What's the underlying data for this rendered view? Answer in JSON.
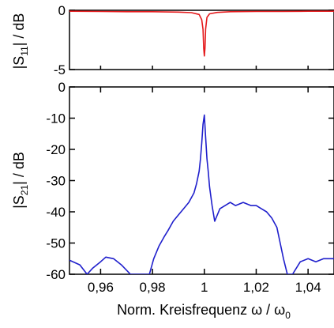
{
  "chart_data": [
    {
      "type": "line",
      "panel": "top",
      "ylabel_main": "|S",
      "ylabel_sub": "11",
      "ylabel_rest": "| / dB",
      "ylim": [
        -5,
        0
      ],
      "yticks": [
        0,
        -5
      ],
      "ytick_labels": [
        "0",
        "-5"
      ],
      "xlim": [
        0.948,
        1.05
      ],
      "series": [
        {
          "color": "#e41a1c",
          "x": [
            0.948,
            0.96,
            0.97,
            0.98,
            0.99,
            0.995,
            0.998,
            0.999,
            0.9995,
            0.99975,
            1.0,
            1.00025,
            1.0005,
            1.001,
            1.002,
            1.005,
            1.01,
            1.02,
            1.03,
            1.04,
            1.05
          ],
          "y": [
            -0.08,
            -0.1,
            -0.12,
            -0.12,
            -0.15,
            -0.2,
            -0.35,
            -0.8,
            -1.6,
            -3.2,
            -3.85,
            -3.2,
            -1.6,
            -0.6,
            -0.3,
            -0.18,
            -0.12,
            -0.1,
            -0.1,
            -0.08,
            -0.08
          ]
        }
      ]
    },
    {
      "type": "line",
      "panel": "bottom",
      "ylabel_main": "|S",
      "ylabel_sub": "21",
      "ylabel_rest": "| / dB",
      "ylim": [
        -60,
        0
      ],
      "yticks": [
        0,
        -10,
        -20,
        -30,
        -40,
        -50,
        -60
      ],
      "ytick_labels": [
        "0",
        "-10",
        "-20",
        "-30",
        "-40",
        "-50",
        "-60"
      ],
      "xlim": [
        0.948,
        1.05
      ],
      "xticks": [
        0.96,
        0.98,
        1.0,
        1.02,
        1.04
      ],
      "xtick_labels": [
        "0,96",
        "0,98",
        "1",
        "1,02",
        "1,04"
      ],
      "xlabel_main": "Norm. Kreisfrequenz ω / ω",
      "xlabel_sub": "0",
      "series": [
        {
          "color": "#1f1fcc",
          "x": [
            0.948,
            0.952,
            0.9548,
            0.957,
            0.96,
            0.962,
            0.965,
            0.968,
            0.9715,
            0.975,
            0.9788,
            0.9805,
            0.9825,
            0.9845,
            0.986,
            0.988,
            0.99,
            0.992,
            0.994,
            0.996,
            0.997,
            0.998,
            0.9985,
            0.999,
            0.9995,
            1.0,
            1.0005,
            1.001,
            1.0015,
            1.002,
            1.003,
            1.004,
            1.005,
            1.006,
            1.008,
            1.01,
            1.012,
            1.015,
            1.018,
            1.02,
            1.022,
            1.024,
            1.026,
            1.028,
            1.029,
            1.0305,
            1.032,
            1.034,
            1.037,
            1.04,
            1.043,
            1.046,
            1.05
          ],
          "y": [
            -55.5,
            -57,
            -60,
            -58,
            -56,
            -54.5,
            -55,
            -57,
            -60,
            -60,
            -60,
            -55,
            -51,
            -48,
            -46,
            -43,
            -41,
            -39,
            -37,
            -34,
            -31,
            -27,
            -23,
            -18,
            -12,
            -9,
            -16,
            -23,
            -27,
            -32,
            -38,
            -43,
            -41,
            -39,
            -38,
            -37,
            -38,
            -37,
            -38,
            -38,
            -39,
            -40,
            -42,
            -45,
            -49,
            -55,
            -60,
            -60,
            -56,
            -55,
            -56,
            -55,
            -55
          ]
        }
      ]
    }
  ]
}
